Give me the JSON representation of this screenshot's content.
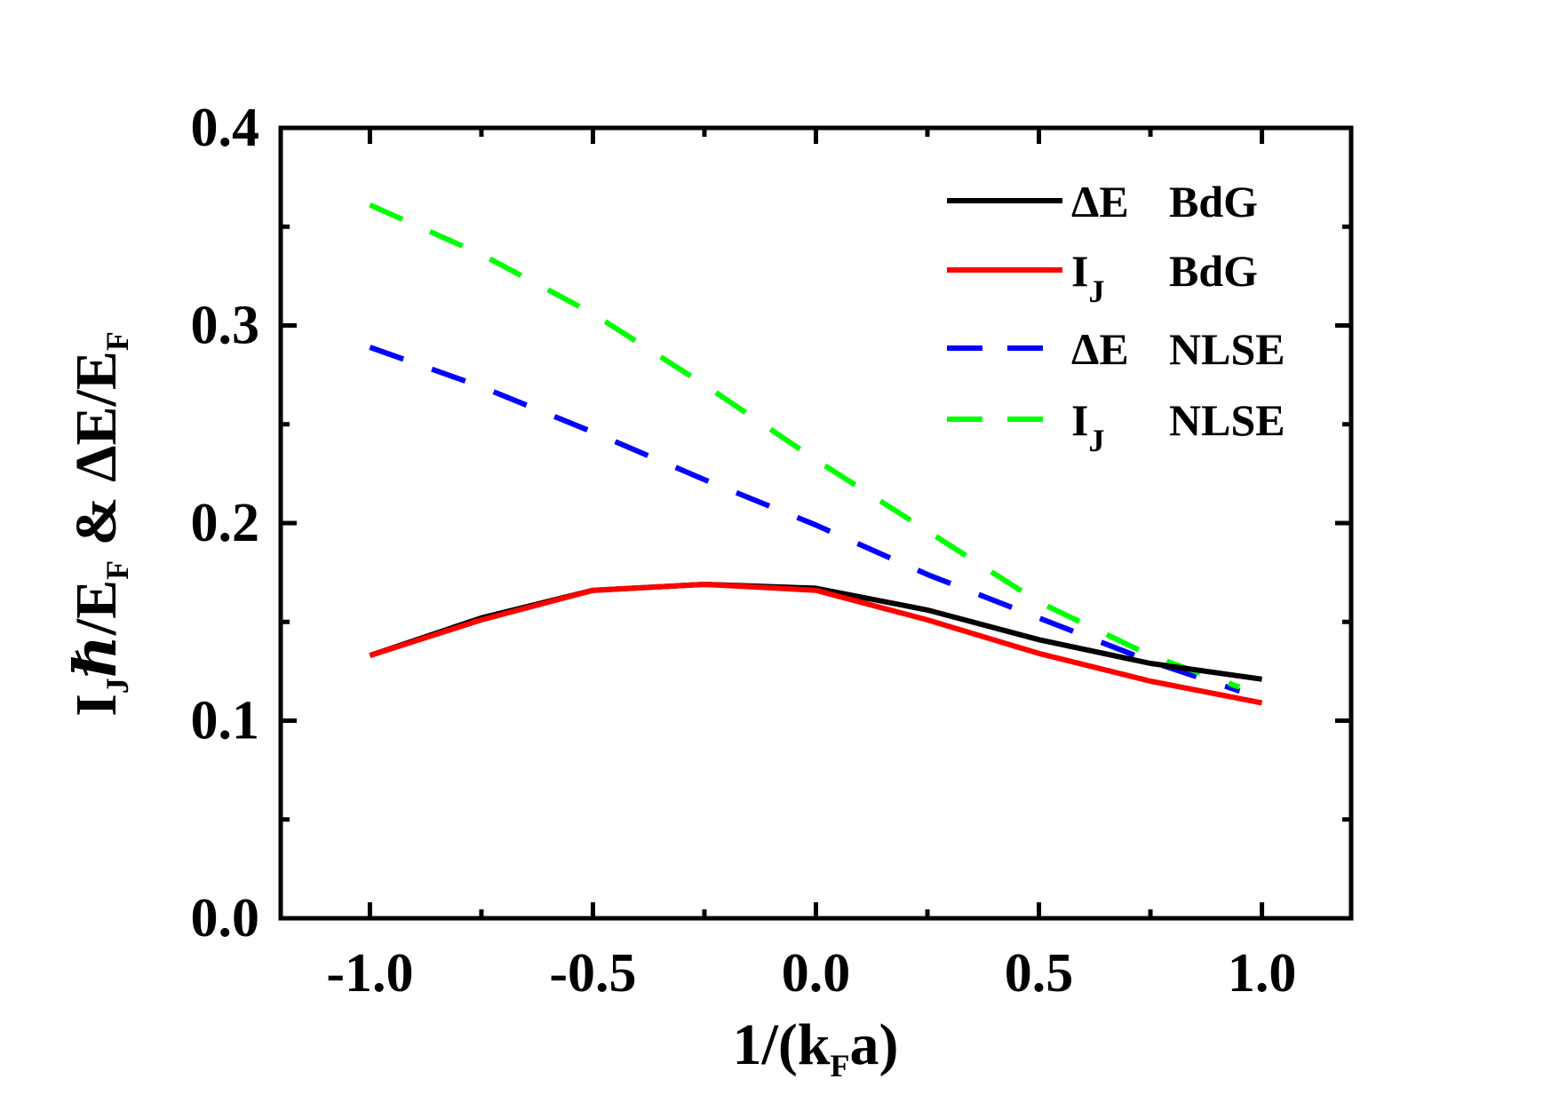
{
  "chart_data": {
    "type": "line",
    "title": "",
    "xlabel": {
      "main": "1/(k",
      "sub": "F",
      "tail": "a)"
    },
    "ylabel": {
      "p1": "I",
      "s1": "J",
      "p2": "ℏ/E",
      "s2": "F",
      "p3": " & ΔE/E",
      "s3": "F"
    },
    "xlim": [
      -1.2,
      1.2
    ],
    "ylim": [
      0.0,
      0.4
    ],
    "xticks": [
      "-1.0",
      "-0.5",
      "0.0",
      "0.5",
      "1.0"
    ],
    "xtick_values": [
      -1.0,
      -0.5,
      0.0,
      0.5,
      1.0
    ],
    "yticks": [
      "0.0",
      "0.1",
      "0.2",
      "0.3",
      "0.4"
    ],
    "ytick_values": [
      0.0,
      0.1,
      0.2,
      0.3,
      0.4
    ],
    "legend_position": "top-right",
    "series": [
      {
        "name": "ΔE BdG",
        "legend_main": "ΔE",
        "legend_sub": "",
        "legend_method": "BdG",
        "color": "#000000",
        "style": "solid",
        "x": [
          -1.0,
          -0.75,
          -0.5,
          -0.25,
          0.0,
          0.25,
          0.5,
          0.75,
          1.0
        ],
        "y": [
          0.133,
          0.152,
          0.166,
          0.169,
          0.167,
          0.156,
          0.141,
          0.129,
          0.121
        ]
      },
      {
        "name": "IJ BdG",
        "legend_main": "I",
        "legend_sub": "J",
        "legend_method": "BdG",
        "color": "#ff0000",
        "style": "solid",
        "x": [
          -1.0,
          -0.75,
          -0.5,
          -0.25,
          0.0,
          0.25,
          0.5,
          0.75,
          1.0
        ],
        "y": [
          0.133,
          0.151,
          0.166,
          0.169,
          0.166,
          0.151,
          0.134,
          0.12,
          0.109
        ]
      },
      {
        "name": "ΔE NLSE",
        "legend_main": "ΔE",
        "legend_sub": "",
        "legend_method": "NLSE",
        "color": "#0000ff",
        "style": "dashed",
        "x": [
          -1.0,
          -0.75,
          -0.5,
          -0.25,
          0.0,
          0.25,
          0.5,
          0.75,
          0.95
        ],
        "y": [
          0.289,
          0.269,
          0.246,
          0.222,
          0.199,
          0.174,
          0.152,
          0.13,
          0.115
        ]
      },
      {
        "name": "IJ NLSE",
        "legend_main": "I",
        "legend_sub": "J",
        "legend_method": "NLSE",
        "color": "#00ff00",
        "style": "dashed",
        "x": [
          -1.0,
          -0.75,
          -0.5,
          -0.25,
          0.0,
          0.25,
          0.5,
          0.75,
          0.95
        ],
        "y": [
          0.361,
          0.336,
          0.306,
          0.27,
          0.232,
          0.196,
          0.16,
          0.133,
          0.117
        ]
      }
    ]
  }
}
